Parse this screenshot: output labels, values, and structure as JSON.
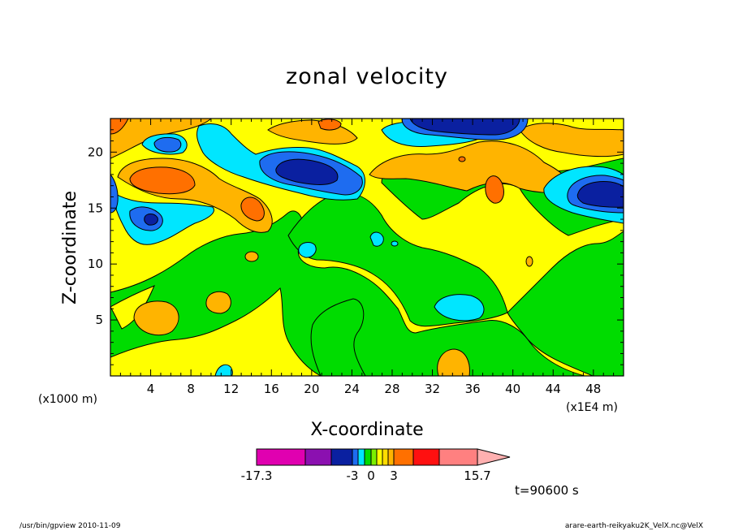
{
  "chart_data": {
    "type": "heatmap",
    "title": "zonal velocity",
    "xlabel": "X-coordinate",
    "ylabel": "Z-coordinate",
    "x_unit": "(x1E4 m)",
    "y_unit": "(x1000 m)",
    "xlim": [
      0,
      51
    ],
    "ylim": [
      0,
      23
    ],
    "x_ticks": [
      "4",
      "8",
      "12",
      "16",
      "20",
      "24",
      "28",
      "32",
      "36",
      "40",
      "44",
      "48"
    ],
    "y_ticks": [
      "5",
      "10",
      "15",
      "20"
    ],
    "colorbar": {
      "labels": [
        "-17.3",
        "-3",
        "0",
        "3",
        "15.7"
      ],
      "levels": [
        -17.3,
        -12.3,
        -7.3,
        -3,
        -2,
        -1,
        0,
        1,
        2,
        3,
        4.7,
        7.7,
        10.7,
        15.7
      ],
      "colors": [
        "#e000b0",
        "#8b10b0",
        "#0a20a0",
        "#1e6cf0",
        "#00e6ff",
        "#00dc00",
        "#7cf000",
        "#ffff00",
        "#ffdc00",
        "#ffb400",
        "#ff7000",
        "#ff1010",
        "#ff8080",
        "#ffb0b0"
      ]
    },
    "time_label": "t=90600 s",
    "footer_left": "/usr/bin/gpview   2010-11-09",
    "footer_right": "arare-earth-reikyaku2K_VelX.nc@VelX"
  }
}
